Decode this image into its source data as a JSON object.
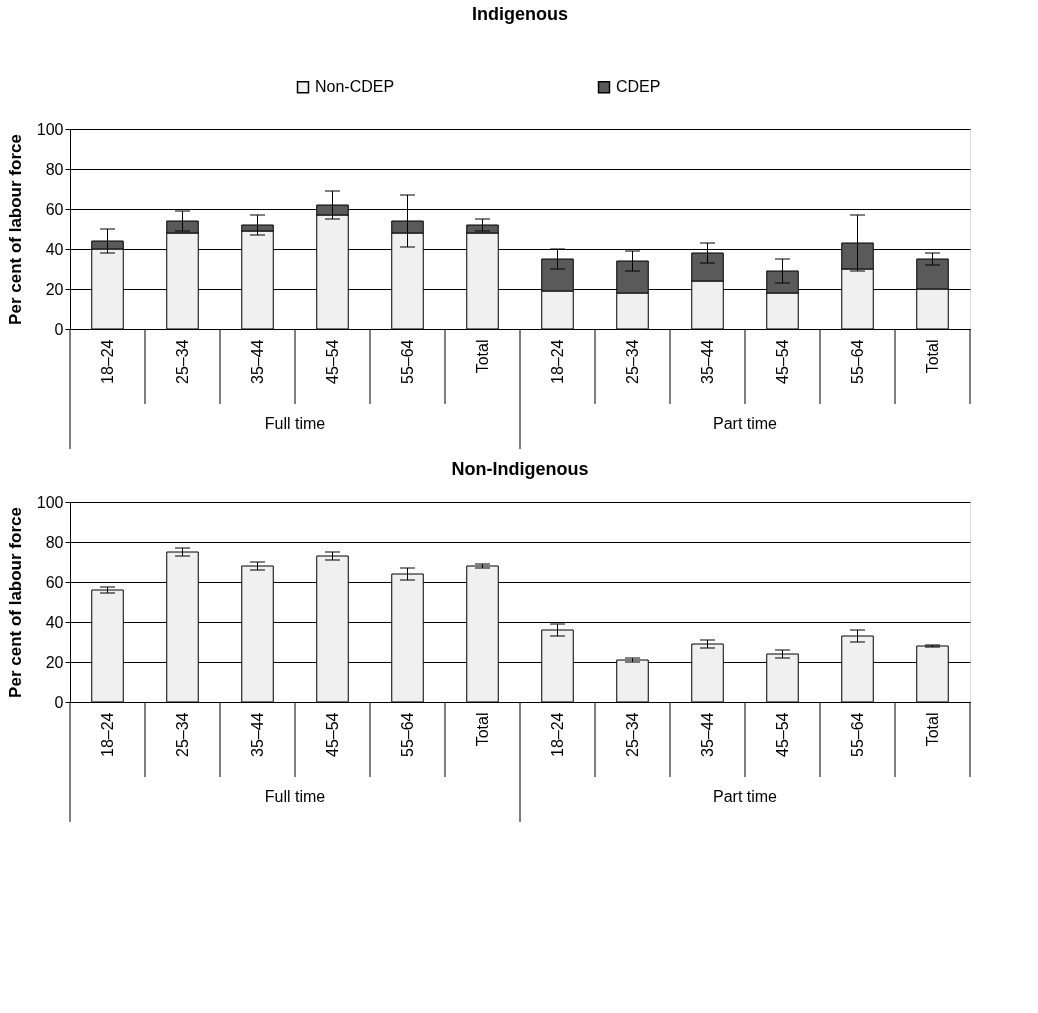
{
  "chart_data": [
    {
      "type": "bar",
      "title": "Indigenous",
      "ylabel": "Per cent of labour force",
      "stacked": true,
      "categories": [
        "18–24",
        "25–34",
        "35–44",
        "45–54",
        "55–64",
        "Total",
        "18–24",
        "25–34",
        "35–44",
        "45–54",
        "55–64",
        "Total"
      ],
      "annotations": [
        "Full time",
        "Part time"
      ],
      "series": [
        {
          "name": "Non-CDEP",
          "color": "#f0f0f0",
          "values": [
            40,
            48,
            49,
            57,
            48,
            48,
            19,
            18,
            24,
            18,
            30,
            20
          ]
        },
        {
          "name": "CDEP",
          "color": "#5a5a5a",
          "values": [
            4,
            6,
            3,
            5,
            6,
            4,
            16,
            16,
            14,
            11,
            13,
            15
          ],
          "errors": [
            6,
            5,
            5,
            7,
            13,
            3,
            5,
            5,
            5,
            6,
            14,
            3
          ]
        }
      ],
      "ylim": [
        0,
        100
      ],
      "yticks": [
        0,
        20,
        40,
        60,
        80,
        100
      ],
      "grid": "y",
      "legend": "top"
    },
    {
      "type": "bar",
      "title": "Non-Indigenous",
      "ylabel": "Per cent of labour force",
      "categories": [
        "18–24",
        "25–34",
        "35–44",
        "45–54",
        "55–64",
        "Total",
        "18–24",
        "25–34",
        "35–44",
        "45–54",
        "55–64",
        "Total"
      ],
      "annotations": [
        "Full time",
        "Part time"
      ],
      "series": [
        {
          "color": "#f0f0f0",
          "values": [
            56,
            75,
            68,
            73,
            64,
            68,
            36,
            21,
            29,
            24,
            33,
            28
          ],
          "errors": [
            1.5,
            2,
            2,
            2,
            3,
            1,
            3,
            1,
            2,
            2,
            3,
            0.5
          ]
        }
      ],
      "ylim": [
        0,
        100
      ],
      "yticks": [
        0,
        20,
        40,
        60,
        80,
        100
      ],
      "grid": "y",
      "legend": false
    }
  ]
}
